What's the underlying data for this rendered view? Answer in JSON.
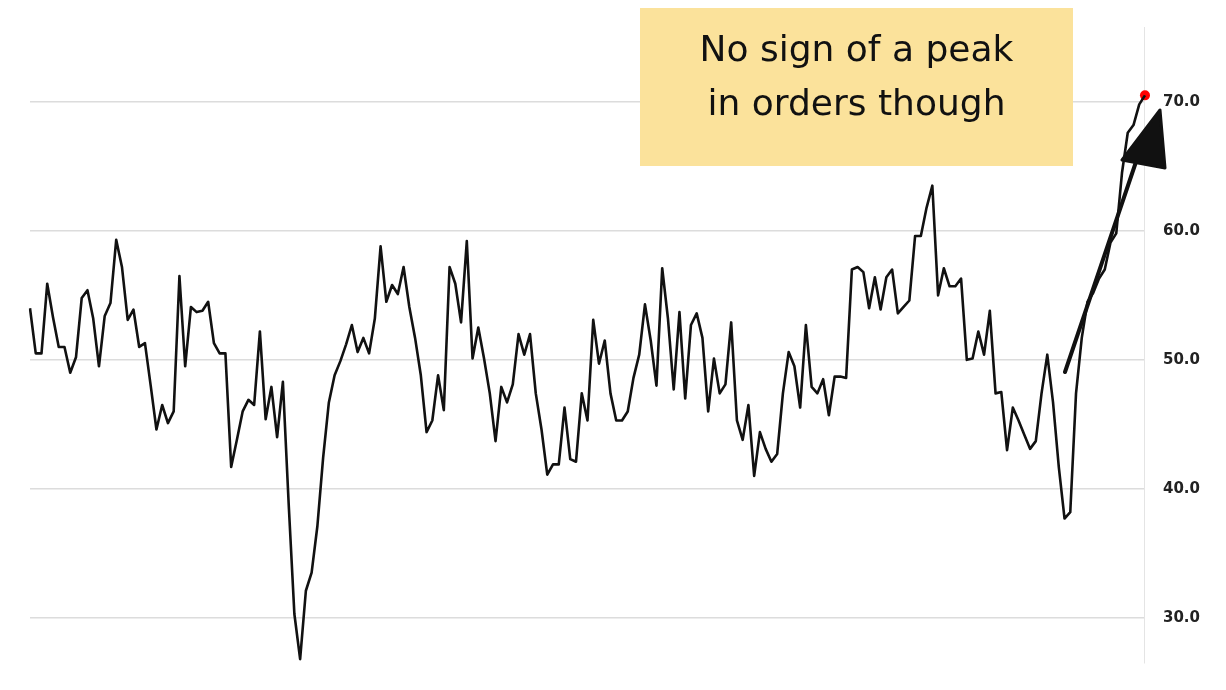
{
  "chart_data": {
    "type": "line",
    "annotations": [
      "No sign of a peak in orders though"
    ],
    "categories": [
      null,
      null,
      null,
      null,
      null,
      null,
      null,
      null,
      null,
      null,
      null,
      null,
      null,
      null,
      null,
      null,
      null,
      null,
      null,
      null,
      null,
      null,
      null,
      null,
      null,
      null,
      null,
      null,
      null,
      null,
      null,
      null,
      null,
      null,
      null,
      null,
      null,
      null,
      null,
      null,
      null,
      null,
      null,
      null,
      null,
      null,
      null,
      null,
      null,
      null,
      null,
      null,
      null,
      null,
      null,
      null,
      null,
      null,
      null,
      null,
      null,
      null,
      null,
      null,
      null,
      null,
      null,
      null,
      null,
      null,
      null,
      null,
      null,
      null,
      null,
      null,
      null,
      null,
      null,
      null,
      null,
      null,
      null,
      null,
      null,
      null,
      null,
      null,
      null,
      null,
      null,
      null,
      null,
      null,
      null,
      null,
      null,
      null,
      null,
      null,
      null,
      null,
      null,
      null,
      null,
      null,
      null,
      null,
      null,
      null,
      null,
      null,
      null,
      null,
      null,
      null,
      null,
      null,
      null,
      null,
      null,
      null,
      null,
      null,
      null,
      null,
      null,
      null,
      null,
      null,
      null,
      null,
      null,
      null,
      null,
      null,
      null,
      null,
      null,
      null,
      null,
      null,
      null,
      null,
      null,
      null,
      null,
      null,
      null,
      null,
      null,
      null,
      null,
      null,
      null,
      null,
      null,
      null,
      null,
      null,
      null,
      null,
      null,
      null,
      null,
      null,
      null,
      null,
      null,
      null,
      null,
      null,
      null,
      null,
      null,
      null,
      null,
      null,
      null,
      null,
      null,
      null,
      null,
      null,
      null,
      null,
      null,
      null,
      null,
      null,
      null,
      null,
      null,
      null,
      null
    ],
    "series": [
      {
        "color": "#111111",
        "marker": "none",
        "values": [
          54.0,
          50.5,
          50.5,
          55.9,
          53.3,
          51.0,
          51.0,
          49.0,
          50.2,
          54.8,
          55.4,
          53.2,
          49.5,
          53.4,
          54.4,
          59.3,
          57.2,
          53.1,
          53.9,
          51.0,
          51.3,
          48.0,
          44.6,
          46.5,
          45.1,
          46.0,
          56.5,
          49.5,
          54.1,
          53.7,
          53.8,
          54.5,
          51.3,
          50.5,
          50.5,
          41.7,
          43.8,
          46.0,
          46.9,
          46.5,
          52.2,
          45.4,
          47.9,
          44.0,
          48.3,
          38.9,
          30.3,
          26.8,
          32.1,
          33.5,
          37.1,
          42.4,
          46.7,
          48.8,
          49.9,
          51.2,
          52.7,
          50.6,
          51.7,
          50.5,
          53.2,
          58.8,
          54.5,
          55.8,
          55.1,
          57.2,
          54.1,
          51.7,
          48.8,
          44.4,
          45.3,
          48.8,
          46.1,
          57.2,
          55.9,
          52.9,
          59.2,
          50.1,
          52.5,
          50.1,
          47.4,
          43.7,
          47.9,
          46.7,
          48.1,
          52.0,
          50.4,
          52.0,
          47.4,
          44.6,
          41.1,
          41.9,
          41.9,
          46.3,
          42.3,
          42.1,
          47.4,
          45.3,
          53.1,
          49.7,
          51.5,
          47.4,
          45.3,
          45.3,
          46.0,
          48.6,
          50.4,
          54.3,
          51.5,
          48.0,
          57.1,
          53.2,
          47.7,
          53.7,
          47.0,
          52.7,
          53.6,
          51.7,
          46.0,
          50.1,
          47.4,
          48.1,
          52.9,
          45.3,
          43.8,
          46.5,
          41.0,
          44.4,
          43.1,
          42.1,
          42.7,
          47.4,
          50.6,
          49.5,
          46.3,
          52.7,
          47.9,
          47.4,
          48.5,
          45.7,
          48.7,
          48.7,
          48.6,
          57.0,
          57.2,
          56.8,
          54.0,
          56.4,
          53.9,
          56.4,
          57.0,
          53.6,
          54.1,
          54.6,
          59.6,
          59.6,
          61.8,
          63.5,
          55.0,
          57.1,
          55.7,
          55.7,
          56.3,
          50.0,
          50.1,
          52.2,
          50.4,
          53.8,
          47.4,
          47.5,
          43.0,
          46.3,
          45.3,
          44.2,
          43.1,
          43.7,
          47.4,
          50.4,
          46.7,
          41.7,
          37.7,
          38.2,
          47.4,
          51.7,
          54.5,
          55.2,
          56.3,
          57.0,
          59.1,
          59.8,
          64.5,
          67.6,
          68.2,
          69.8,
          70.5
        ]
      },
      {
        "type": "scatter",
        "color": "#ff0000",
        "marker": "circle",
        "values": [
          null,
          null,
          null,
          null,
          null,
          null,
          null,
          null,
          null,
          null,
          null,
          null,
          null,
          null,
          null,
          null,
          null,
          null,
          null,
          null,
          null,
          null,
          null,
          null,
          null,
          null,
          null,
          null,
          null,
          null,
          null,
          null,
          null,
          null,
          null,
          null,
          null,
          null,
          null,
          null,
          null,
          null,
          null,
          null,
          null,
          null,
          null,
          null,
          null,
          null,
          null,
          null,
          null,
          null,
          null,
          null,
          null,
          null,
          null,
          null,
          null,
          null,
          null,
          null,
          null,
          null,
          null,
          null,
          null,
          null,
          null,
          null,
          null,
          null,
          null,
          null,
          null,
          null,
          null,
          null,
          null,
          null,
          null,
          null,
          null,
          null,
          null,
          null,
          null,
          null,
          null,
          null,
          null,
          null,
          null,
          null,
          null,
          null,
          null,
          null,
          null,
          null,
          null,
          null,
          null,
          null,
          null,
          null,
          null,
          null,
          null,
          null,
          null,
          null,
          null,
          null,
          null,
          null,
          null,
          null,
          null,
          null,
          null,
          null,
          null,
          null,
          null,
          null,
          null,
          null,
          null,
          null,
          null,
          null,
          null,
          null,
          null,
          null,
          null,
          null,
          null,
          null,
          null,
          null,
          null,
          null,
          null,
          null,
          null,
          null,
          null,
          null,
          null,
          null,
          null,
          null,
          null,
          null,
          null,
          null,
          null,
          null,
          null,
          null,
          null,
          null,
          null,
          null,
          null,
          null,
          null,
          null,
          null,
          null,
          null,
          null,
          null,
          null,
          null,
          null,
          null,
          null,
          null,
          null,
          null,
          null,
          null,
          null,
          null,
          null,
          null,
          null,
          null,
          null,
          70.5
        ]
      }
    ],
    "ylim": [
      26.5,
      75.8
    ],
    "yticks": [
      {
        "value": 30,
        "label": "30.0"
      },
      {
        "value": 40,
        "label": "40.0"
      },
      {
        "value": 50,
        "label": "50.0"
      },
      {
        "value": 60,
        "label": "60.0"
      },
      {
        "value": 70,
        "label": "70.0"
      }
    ],
    "grid": "y",
    "legend": false,
    "line_style": "solid"
  }
}
